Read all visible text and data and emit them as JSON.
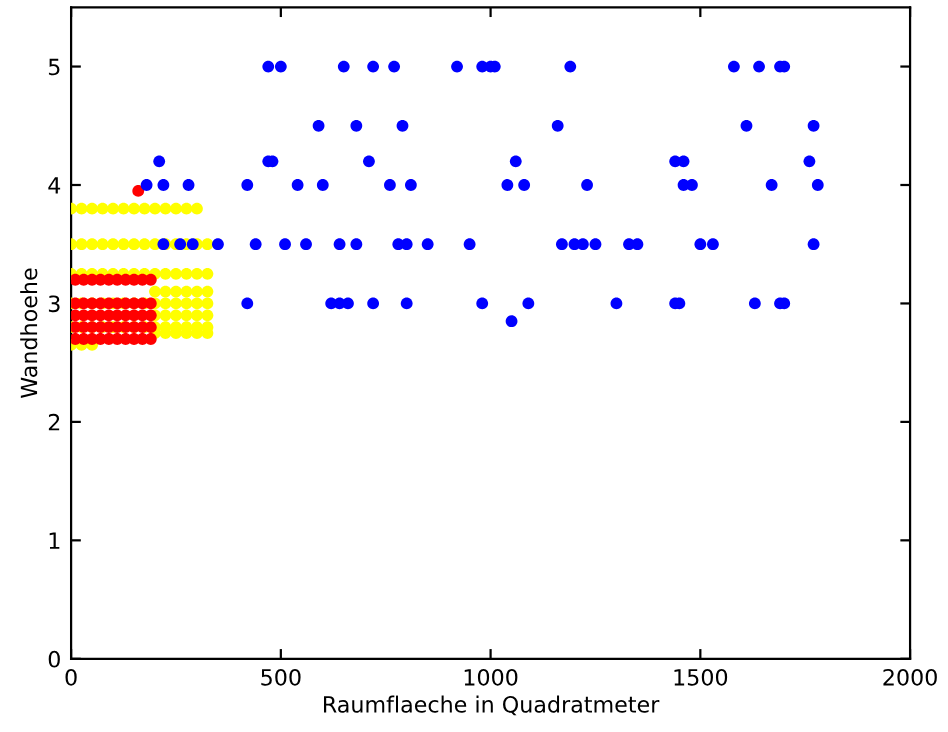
{
  "chart_data": {
    "type": "scatter",
    "xlabel": "Raumflaeche in Quadratmeter",
    "ylabel": "Wandhoehe",
    "xlim": [
      0,
      2000
    ],
    "ylim": [
      0,
      5.5
    ],
    "xticks": [
      0,
      500,
      1000,
      1500,
      2000
    ],
    "yticks": [
      0,
      1,
      2,
      3,
      4,
      5
    ],
    "grid": false,
    "legend": false,
    "marker": "circle",
    "series": [
      {
        "color": "#ffff00",
        "x": [
          0,
          25,
          50,
          75,
          100,
          125,
          150,
          175,
          200,
          225,
          250,
          275,
          300,
          0,
          25,
          50,
          75,
          100,
          125,
          150,
          175,
          200,
          225,
          250,
          275,
          300,
          325,
          0,
          25,
          50,
          75,
          100,
          125,
          150,
          175,
          200,
          225,
          250,
          275,
          300,
          325,
          200,
          225,
          250,
          275,
          300,
          325,
          0,
          25,
          50,
          75,
          100,
          125,
          150,
          175,
          200,
          225,
          250,
          275,
          300,
          325,
          200,
          225,
          250,
          275,
          300,
          325,
          0,
          25,
          50,
          75,
          100,
          125,
          150,
          175,
          200,
          225,
          250,
          275,
          300,
          325,
          200,
          225,
          250,
          275,
          300,
          325,
          0,
          25,
          50
        ],
        "values": [
          3.8,
          3.8,
          3.8,
          3.8,
          3.8,
          3.8,
          3.8,
          3.8,
          3.8,
          3.8,
          3.8,
          3.8,
          3.8,
          3.5,
          3.5,
          3.5,
          3.5,
          3.5,
          3.5,
          3.5,
          3.5,
          3.5,
          3.5,
          3.5,
          3.5,
          3.5,
          3.5,
          3.25,
          3.25,
          3.25,
          3.25,
          3.25,
          3.25,
          3.25,
          3.25,
          3.25,
          3.25,
          3.25,
          3.25,
          3.25,
          3.25,
          3.1,
          3.1,
          3.1,
          3.1,
          3.1,
          3.1,
          3.0,
          3.0,
          3.0,
          3.0,
          3.0,
          3.0,
          3.0,
          3.0,
          3.0,
          3.0,
          3.0,
          3.0,
          3.0,
          3.0,
          2.9,
          2.9,
          2.9,
          2.9,
          2.9,
          2.9,
          2.8,
          2.8,
          2.8,
          2.8,
          2.8,
          2.8,
          2.8,
          2.8,
          2.8,
          2.8,
          2.8,
          2.8,
          2.8,
          2.8,
          2.75,
          2.75,
          2.75,
          2.75,
          2.75,
          2.75,
          2.65,
          2.65,
          2.65
        ]
      },
      {
        "color": "#ff0000",
        "x": [
          10,
          30,
          50,
          70,
          90,
          110,
          130,
          150,
          170,
          190,
          10,
          30,
          50,
          70,
          90,
          110,
          130,
          150,
          170,
          190,
          10,
          30,
          50,
          70,
          90,
          110,
          130,
          150,
          170,
          190,
          10,
          30,
          50,
          70,
          90,
          110,
          130,
          150,
          170,
          190,
          10,
          30,
          50,
          70,
          90,
          110,
          130,
          150,
          170,
          190,
          160
        ],
        "values": [
          3.2,
          3.2,
          3.2,
          3.2,
          3.2,
          3.2,
          3.2,
          3.2,
          3.2,
          3.2,
          3.0,
          3.0,
          3.0,
          3.0,
          3.0,
          3.0,
          3.0,
          3.0,
          3.0,
          3.0,
          2.9,
          2.9,
          2.9,
          2.9,
          2.9,
          2.9,
          2.9,
          2.9,
          2.9,
          2.9,
          2.8,
          2.8,
          2.8,
          2.8,
          2.8,
          2.8,
          2.8,
          2.8,
          2.8,
          2.8,
          2.7,
          2.7,
          2.7,
          2.7,
          2.7,
          2.7,
          2.7,
          2.7,
          2.7,
          2.7,
          3.95
        ]
      },
      {
        "color": "#0000ff",
        "x": [
          470,
          500,
          650,
          720,
          770,
          920,
          980,
          1000,
          1010,
          1190,
          1580,
          1640,
          1690,
          1700,
          590,
          680,
          790,
          1160,
          1610,
          1770,
          210,
          470,
          480,
          710,
          1060,
          1440,
          1460,
          1760,
          180,
          220,
          280,
          420,
          540,
          600,
          760,
          810,
          1040,
          1080,
          1230,
          1460,
          1480,
          1670,
          1780,
          220,
          260,
          290,
          350,
          440,
          510,
          560,
          640,
          680,
          780,
          800,
          850,
          950,
          1170,
          1200,
          1220,
          1250,
          1330,
          1350,
          1500,
          1530,
          1770,
          420,
          620,
          640,
          660,
          720,
          800,
          980,
          1090,
          1300,
          1440,
          1450,
          1630,
          1690,
          1700,
          1050
        ],
        "values": [
          5,
          5,
          5,
          5,
          5,
          5,
          5,
          5,
          5,
          5,
          5,
          5,
          5,
          5,
          4.5,
          4.5,
          4.5,
          4.5,
          4.5,
          4.5,
          4.2,
          4.2,
          4.2,
          4.2,
          4.2,
          4.2,
          4.2,
          4.2,
          4,
          4,
          4,
          4,
          4,
          4,
          4,
          4,
          4,
          4,
          4,
          4,
          4,
          4,
          4,
          3.5,
          3.5,
          3.5,
          3.5,
          3.5,
          3.5,
          3.5,
          3.5,
          3.5,
          3.5,
          3.5,
          3.5,
          3.5,
          3.5,
          3.5,
          3.5,
          3.5,
          3.5,
          3.5,
          3.5,
          3.5,
          3.5,
          3,
          3,
          3,
          3,
          3,
          3,
          3,
          3,
          3,
          3,
          3,
          3,
          3,
          3,
          2.85
        ]
      }
    ]
  }
}
